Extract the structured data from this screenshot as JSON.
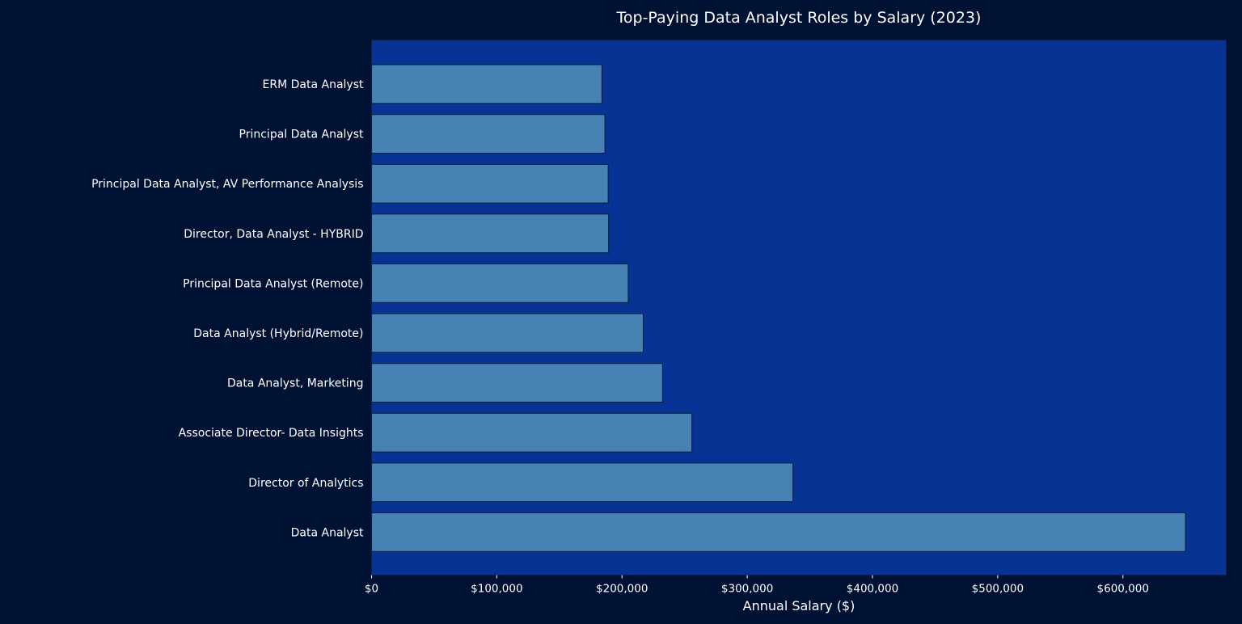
{
  "chart_data": {
    "type": "bar",
    "orientation": "horizontal",
    "title": "Top-Paying Data Analyst Roles by Salary (2023)",
    "xlabel": "Annual Salary ($)",
    "ylabel": "",
    "categories": [
      "ERM Data Analyst",
      "Principal Data Analyst",
      "Principal Data Analyst, AV Performance Analysis",
      "Director, Data Analyst - HYBRID",
      "Principal Data Analyst (Remote)",
      "Data Analyst (Hybrid/Remote)",
      "Data Analyst, Marketing",
      "Associate Director- Data Insights",
      "Director of Analytics",
      "Data Analyst"
    ],
    "values": [
      184000,
      186400,
      189000,
      189309,
      205000,
      217000,
      232423,
      255829,
      336500,
      650000
    ],
    "xlim": [
      0,
      682500
    ],
    "xticks": [
      0,
      100000,
      200000,
      300000,
      400000,
      500000,
      600000
    ],
    "xtick_labels": [
      "$0",
      "$100,000",
      "$200,000",
      "$300,000",
      "$400,000",
      "$500,000",
      "$600,000"
    ],
    "grid": false,
    "legend": "none",
    "colors": {
      "page_background": "#001233",
      "plot_background": "#073494",
      "bar_fill": "#4682B4",
      "bar_edge": "#0b1f4a",
      "text": "#ffffff"
    }
  }
}
